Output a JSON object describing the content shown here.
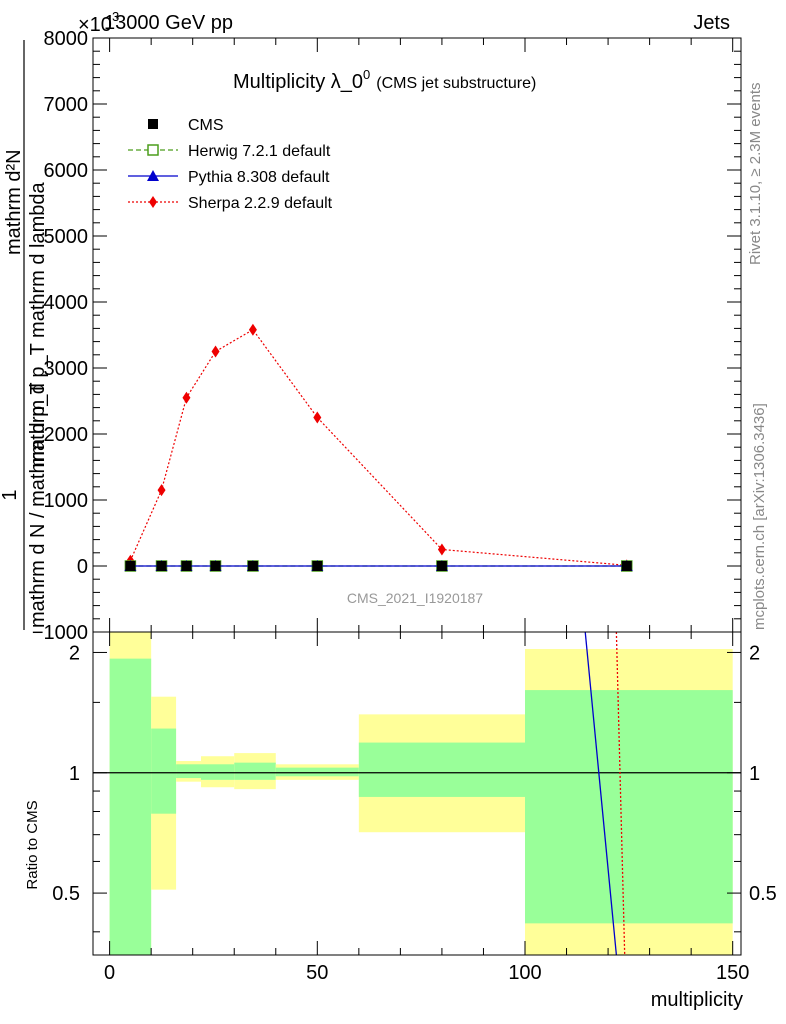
{
  "header": {
    "energy_label": "13000 GeV pp",
    "process_label": "Jets",
    "exponent_label": "×10",
    "exponent_power": "3"
  },
  "side_labels": {
    "rivet": "Rivet 3.1.10, ≥ 2.3M events",
    "mcplots": "mcplots.cern.ch [arXiv:1306.3436]"
  },
  "main_plot": {
    "title": "Multiplicity λ_0",
    "title_superscript": "0",
    "title_suffix": "(CMS jet substructure)",
    "analysis_id": "CMS_2021_I1920187",
    "ylabel_numerator": "1",
    "ylabel_denominator": "mathrm d N / mathrm d p",
    "ylabel_full": "mathrm d N / mathrm d p mathrm d lambda  1 mathrm d N / mathrm d q mathrm d p mathrm d lambda",
    "ylabel_lines": [
      "mathrm d²N",
      "mathrm d p_T mathrm d lambda",
      "1",
      "mathrm d N / mathrm d p_T"
    ]
  },
  "legend": [
    {
      "name": "CMS",
      "color": "#000000",
      "marker": "square-filled",
      "line": "none"
    },
    {
      "name": "Herwig 7.2.1 default",
      "color": "#4c9e1c",
      "marker": "square-open",
      "line": "dashed"
    },
    {
      "name": "Pythia 8.308 default",
      "color": "#0000cc",
      "marker": "triangle",
      "line": "solid"
    },
    {
      "name": "Sherpa 2.2.9 default",
      "color": "#ee0000",
      "marker": "diamond",
      "line": "dotted"
    }
  ],
  "ratio_plot": {
    "ylabel": "Ratio to CMS",
    "xlabel": "multiplicity"
  },
  "chart_data": {
    "type": "line",
    "title": "Multiplicity λ_0^0 (CMS jet substructure)",
    "xlabel": "multiplicity",
    "ylabel": "1/(dN/dp_T) d²N/(dp_T dλ)",
    "xlim": [
      -4,
      152
    ],
    "ylim": [
      -1000,
      8000
    ],
    "y_scale_factor": 1000,
    "x_ticks": [
      0,
      50,
      100,
      150
    ],
    "y_ticks": [
      -1000,
      0,
      1000,
      2000,
      3000,
      4000,
      5000,
      6000,
      7000,
      8000
    ],
    "y_tick_labels": [
      "−1000",
      "0",
      "1000",
      "2000",
      "3000",
      "4000",
      "5000",
      "6000",
      "7000",
      "8000"
    ],
    "x_tick_labels": [
      "0",
      "50",
      "100",
      "150"
    ],
    "series": [
      {
        "name": "CMS",
        "x": [
          5,
          12.5,
          18.5,
          25.5,
          34.5,
          50,
          80,
          124.5
        ],
        "y": [
          0,
          0,
          0,
          0,
          0,
          0,
          0,
          0
        ]
      },
      {
        "name": "Herwig 7.2.1 default",
        "x": [
          5,
          12.5,
          18.5,
          25.5,
          34.5,
          50,
          80,
          124.5
        ],
        "y": [
          0,
          0,
          0,
          0,
          0,
          0,
          0,
          0
        ]
      },
      {
        "name": "Pythia 8.308 default",
        "x": [
          5,
          12.5,
          18.5,
          25.5,
          34.5,
          50,
          80,
          124.5
        ],
        "y": [
          0,
          0,
          0,
          0,
          0,
          0,
          0,
          0
        ]
      },
      {
        "name": "Sherpa 2.2.9 default",
        "x": [
          5,
          12.5,
          18.5,
          25.5,
          34.5,
          50,
          80,
          124.5
        ],
        "y": [
          80,
          1150,
          2550,
          3250,
          3580,
          2250,
          250,
          10
        ]
      }
    ],
    "ratio": {
      "ylim": [
        0.35,
        2.25
      ],
      "y_ticks": [
        0.5,
        1,
        2
      ],
      "y_tick_labels": [
        "0.5",
        "1",
        "2"
      ],
      "bands": [
        {
          "x0": 0,
          "x1": 10,
          "yellow_low": 0.35,
          "yellow_high": 2.25,
          "green_low": 0.35,
          "green_high": 1.93
        },
        {
          "x0": 10,
          "x1": 16,
          "yellow_low": 0.51,
          "yellow_high": 1.55,
          "green_low": 0.79,
          "green_high": 1.29
        },
        {
          "x0": 16,
          "x1": 22,
          "yellow_low": 0.95,
          "yellow_high": 1.07,
          "green_low": 0.97,
          "green_high": 1.05
        },
        {
          "x0": 22,
          "x1": 30,
          "yellow_low": 0.92,
          "yellow_high": 1.1,
          "green_low": 0.96,
          "green_high": 1.05
        },
        {
          "x0": 30,
          "x1": 40,
          "yellow_low": 0.91,
          "yellow_high": 1.12,
          "green_low": 0.96,
          "green_high": 1.06
        },
        {
          "x0": 40,
          "x1": 60,
          "yellow_low": 0.96,
          "yellow_high": 1.05,
          "green_low": 0.98,
          "green_high": 1.03
        },
        {
          "x0": 60,
          "x1": 100,
          "yellow_low": 0.71,
          "yellow_high": 1.4,
          "green_low": 0.87,
          "green_high": 1.19
        },
        {
          "x0": 100,
          "x1": 150,
          "yellow_low": 0.35,
          "yellow_high": 2.04,
          "green_low": 0.42,
          "green_high": 1.61
        }
      ],
      "pythia_line": {
        "x": [
          114.5,
          122
        ],
        "y": [
          2.25,
          0.35
        ]
      },
      "sherpa_line": {
        "x": [
          122,
          124
        ],
        "y": [
          2.25,
          0.35
        ]
      }
    }
  }
}
